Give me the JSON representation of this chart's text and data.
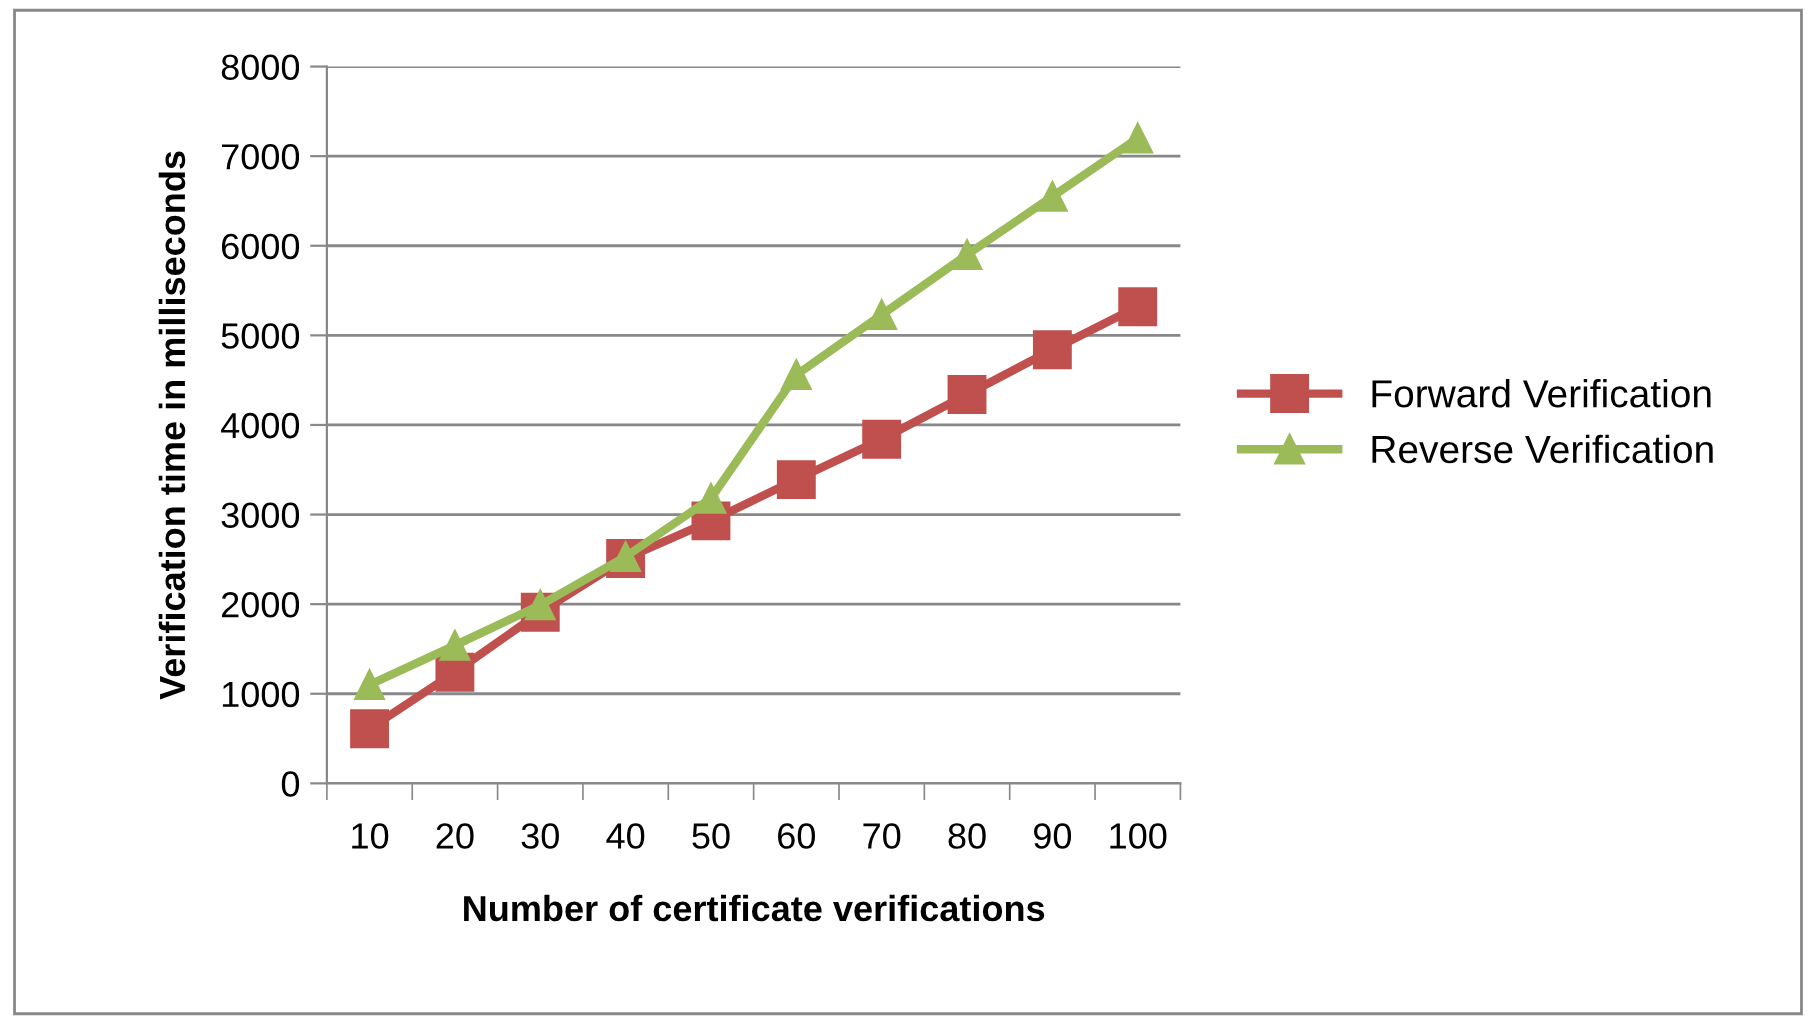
{
  "chart_data": {
    "type": "line",
    "xlabel": "Number of certificate verifications",
    "ylabel": "Verification time in milliseconds",
    "categories": [
      "10",
      "20",
      "30",
      "40",
      "50",
      "60",
      "70",
      "80",
      "90",
      "100"
    ],
    "series": [
      {
        "name": "Forward Verification",
        "color": "#c0504d",
        "marker": "square",
        "values": [
          610,
          1240,
          1910,
          2510,
          2930,
          3390,
          3840,
          4340,
          4840,
          5320
        ]
      },
      {
        "name": "Reverse Verification",
        "color": "#9bbb59",
        "marker": "triangle",
        "values": [
          1100,
          1540,
          1990,
          2530,
          3180,
          4560,
          5230,
          5900,
          6550,
          7200
        ]
      }
    ],
    "ylim": [
      0,
      8000
    ],
    "yticks": [
      0,
      1000,
      2000,
      3000,
      4000,
      5000,
      6000,
      7000,
      8000
    ],
    "grid": "y",
    "legend": "right"
  }
}
